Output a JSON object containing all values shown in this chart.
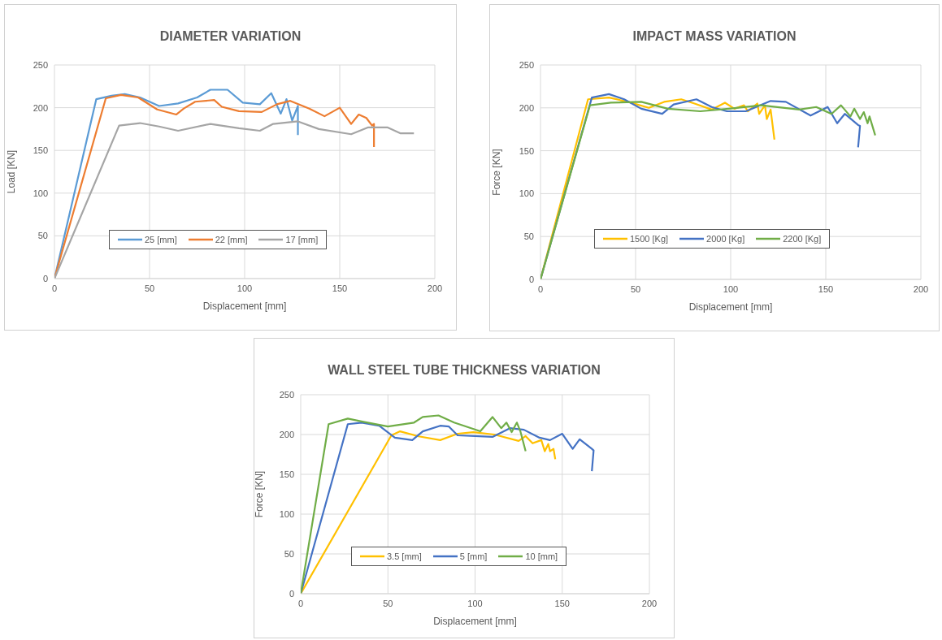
{
  "chart_data": [
    {
      "type": "line",
      "title": "DIAMETER VARIATION",
      "xlabel": "Displacement [mm]",
      "ylabel": "Load [KN]",
      "xlim": [
        0,
        200
      ],
      "xticks": [
        0,
        50,
        100,
        150,
        200
      ],
      "ylim": [
        0,
        250
      ],
      "yticks": [
        0,
        50,
        100,
        150,
        200,
        250
      ],
      "grid": true,
      "legend": "bottom",
      "series": [
        {
          "name": "25 [mm]",
          "color": "#5b9bd5",
          "x": [
            0,
            22,
            30,
            37,
            45,
            55,
            65,
            75,
            82,
            91,
            99,
            108,
            114,
            119,
            122,
            125,
            128,
            128
          ],
          "values": [
            0,
            210,
            214,
            216,
            212,
            202,
            205,
            212,
            221,
            221,
            206,
            204,
            217,
            193,
            210,
            185,
            202,
            168
          ]
        },
        {
          "name": "22 [mm]",
          "color": "#ed7d31",
          "x": [
            0,
            27,
            35,
            44,
            54,
            64,
            68,
            74,
            84,
            88,
            97,
            109,
            117,
            124,
            134,
            142,
            150,
            156,
            160,
            164,
            167,
            168,
            168
          ],
          "values": [
            0,
            211,
            215,
            212,
            198,
            192,
            199,
            207,
            209,
            201,
            196,
            195,
            204,
            208,
            199,
            190,
            200,
            181,
            192,
            188,
            179,
            181,
            154
          ]
        },
        {
          "name": "17 [mm]",
          "color": "#a5a5a5",
          "x": [
            0,
            34,
            45,
            55,
            65,
            82,
            97,
            108,
            115,
            128,
            139,
            156,
            165,
            175,
            182,
            189
          ],
          "values": [
            0,
            179,
            182,
            178,
            173,
            181,
            176,
            173,
            181,
            184,
            175,
            169,
            177,
            177,
            170,
            170
          ]
        }
      ]
    },
    {
      "type": "line",
      "title": "IMPACT MASS VARIATION",
      "xlabel": "Displacement [mm]",
      "ylabel": "Force  [KN]",
      "xlim": [
        0,
        200
      ],
      "xticks": [
        0,
        50,
        100,
        150,
        200
      ],
      "ylim": [
        0,
        250
      ],
      "yticks": [
        0,
        50,
        100,
        150,
        200,
        250
      ],
      "grid": true,
      "legend": "bottom",
      "series": [
        {
          "name": "1500  [Kg]",
          "color": "#ffc000",
          "x": [
            0,
            25,
            36,
            46,
            57,
            65,
            74,
            81,
            90,
            97,
            102,
            107,
            109,
            114,
            115,
            118,
            119,
            121,
            123
          ],
          "values": [
            0,
            210,
            212,
            207,
            200,
            207,
            210,
            205,
            198,
            206,
            199,
            203,
            196,
            205,
            193,
            203,
            187,
            198,
            163
          ]
        },
        {
          "name": "2000  [Kg]",
          "color": "#4472c4",
          "x": [
            0,
            27,
            36,
            44,
            53,
            64,
            70,
            82,
            90,
            98,
            108,
            121,
            129,
            142,
            151,
            156,
            160,
            167,
            168,
            167
          ],
          "values": [
            0,
            212,
            216,
            210,
            199,
            193,
            204,
            210,
            201,
            196,
            196,
            208,
            207,
            191,
            201,
            182,
            193,
            180,
            179,
            154
          ]
        },
        {
          "name": "2200  [Kg]",
          "color": "#70ad47",
          "x": [
            0,
            26,
            37,
            53,
            67,
            84,
            99,
            116,
            136,
            145,
            153,
            158,
            163,
            165,
            168,
            170,
            172,
            173,
            176
          ],
          "values": [
            0,
            203,
            206,
            207,
            199,
            196,
            199,
            203,
            198,
            201,
            193,
            203,
            190,
            199,
            187,
            195,
            182,
            190,
            168
          ]
        }
      ]
    },
    {
      "type": "line",
      "title": "WALL STEEL TUBE THICKNESS  VARIATION",
      "xlabel": "Displacement [mm]",
      "ylabel": "Force  [KN]",
      "xlim": [
        0,
        200
      ],
      "xticks": [
        0,
        50,
        100,
        150,
        200
      ],
      "ylim": [
        0,
        250
      ],
      "yticks": [
        0,
        50,
        100,
        150,
        200,
        250
      ],
      "grid": true,
      "legend": "bottom",
      "series": [
        {
          "name": "3.5  [mm]",
          "color": "#ffc000",
          "x": [
            0,
            52,
            57,
            67,
            80,
            90,
            99,
            111,
            125,
            129,
            133,
            138,
            140,
            142,
            143,
            145,
            146
          ],
          "values": [
            0,
            199,
            204,
            198,
            193,
            201,
            203,
            200,
            192,
            198,
            189,
            193,
            179,
            188,
            179,
            182,
            169
          ]
        },
        {
          "name": "5 [mm]",
          "color": "#4472c4",
          "x": [
            0,
            27,
            35,
            45,
            54,
            64,
            70,
            80,
            85,
            90,
            110,
            120,
            128,
            137,
            143,
            150,
            156,
            160,
            167,
            168,
            167
          ],
          "values": [
            0,
            213,
            215,
            211,
            196,
            193,
            204,
            211,
            210,
            199,
            197,
            208,
            206,
            196,
            193,
            201,
            182,
            194,
            182,
            180,
            154
          ]
        },
        {
          "name": "10 [mm]",
          "color": "#70ad47",
          "x": [
            0,
            16,
            27,
            36,
            50,
            65,
            70,
            79,
            88,
            103,
            110,
            115,
            118,
            121,
            124,
            126,
            129
          ],
          "values": [
            0,
            213,
            220,
            216,
            210,
            215,
            222,
            224,
            215,
            204,
            222,
            208,
            215,
            203,
            215,
            204,
            179
          ]
        }
      ]
    }
  ]
}
